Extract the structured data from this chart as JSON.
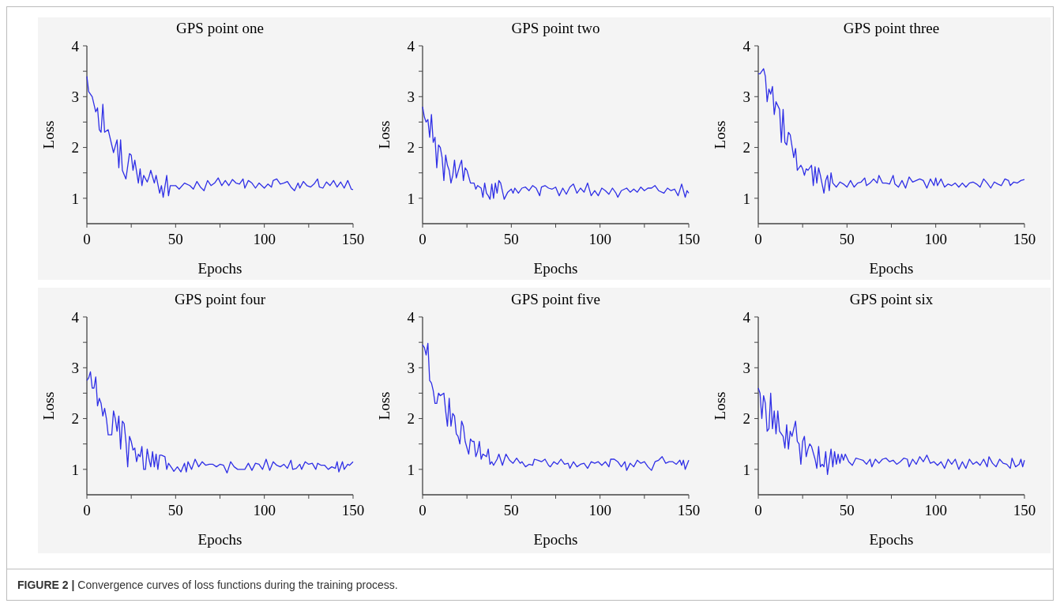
{
  "chart_data": [
    {
      "type": "line",
      "title": "GPS point one",
      "xlabel": "Epochs",
      "ylabel": "Loss",
      "color": "#2f2fe6",
      "xlim": [
        0,
        150
      ],
      "ylim": [
        0.5,
        4
      ],
      "xticks": [
        0,
        {
          "value": 25,
          "label": null
        },
        50,
        {
          "value": 75,
          "label": null
        },
        100,
        {
          "value": 125,
          "label": null
        },
        150
      ],
      "yticks": [
        1,
        {
          "value": 1.5,
          "label": null
        },
        2,
        {
          "value": 2.5,
          "label": null
        },
        3,
        {
          "value": 3.5,
          "label": null
        },
        4
      ],
      "annotations": [
        "FIGURE 2 | Convergence curves of loss functions during the training process."
      ],
      "x": [
        0,
        1,
        3,
        5,
        6,
        7,
        8,
        9,
        10,
        12,
        15,
        17,
        18,
        19,
        20,
        22,
        24,
        25,
        26,
        27,
        29,
        30,
        31,
        32,
        34,
        35,
        36,
        38,
        39,
        41,
        42,
        43,
        45,
        46,
        47,
        50,
        52,
        55,
        58,
        60,
        62,
        64,
        66,
        68,
        70,
        72,
        74,
        76,
        78,
        80,
        82,
        84,
        86,
        88,
        89,
        91,
        93,
        95,
        97,
        100,
        102,
        104,
        105,
        107,
        109,
        111,
        113,
        115,
        117,
        119,
        120,
        122,
        124,
        126,
        128,
        130,
        131,
        133,
        135,
        137,
        139,
        141,
        143,
        145,
        147,
        149,
        150
      ],
      "values": [
        3.4,
        3.1,
        3.0,
        2.7,
        2.78,
        2.35,
        2.3,
        2.85,
        2.3,
        2.35,
        1.9,
        2.15,
        1.6,
        2.15,
        1.55,
        1.38,
        1.88,
        1.85,
        1.55,
        1.75,
        1.3,
        1.58,
        1.25,
        1.45,
        1.32,
        1.42,
        1.55,
        1.3,
        1.45,
        1.1,
        1.25,
        1.02,
        1.45,
        1.05,
        1.25,
        1.25,
        1.18,
        1.3,
        1.25,
        1.18,
        1.33,
        1.22,
        1.15,
        1.35,
        1.25,
        1.3,
        1.4,
        1.25,
        1.35,
        1.25,
        1.37,
        1.3,
        1.28,
        1.38,
        1.2,
        1.35,
        1.3,
        1.2,
        1.3,
        1.2,
        1.28,
        1.22,
        1.35,
        1.38,
        1.28,
        1.3,
        1.33,
        1.22,
        1.15,
        1.3,
        1.2,
        1.33,
        1.25,
        1.22,
        1.28,
        1.38,
        1.22,
        1.2,
        1.32,
        1.25,
        1.35,
        1.22,
        1.32,
        1.2,
        1.35,
        1.18,
        1.17
      ]
    },
    {
      "type": "line",
      "title": "GPS point two",
      "xlabel": "Epochs",
      "ylabel": "Loss",
      "color": "#2f2fe6",
      "xlim": [
        0,
        150
      ],
      "ylim": [
        0.5,
        4
      ],
      "xticks": [
        0,
        {
          "value": 25,
          "label": null
        },
        50,
        {
          "value": 75,
          "label": null
        },
        100,
        {
          "value": 125,
          "label": null
        },
        150
      ],
      "yticks": [
        1,
        {
          "value": 1.5,
          "label": null
        },
        2,
        {
          "value": 2.5,
          "label": null
        },
        3,
        {
          "value": 3.5,
          "label": null
        },
        4
      ],
      "x": [
        0,
        1,
        2,
        3,
        4,
        5,
        6,
        7,
        8,
        9,
        10,
        11,
        12,
        13,
        14,
        15,
        16,
        17,
        18,
        19,
        21,
        22,
        23,
        24,
        25,
        27,
        29,
        30,
        31,
        33,
        34,
        35,
        36,
        37,
        38,
        39,
        40,
        41,
        42,
        43,
        44,
        46,
        48,
        50,
        51,
        52,
        54,
        56,
        58,
        60,
        62,
        64,
        66,
        67,
        69,
        71,
        73,
        75,
        77,
        79,
        81,
        83,
        85,
        87,
        89,
        91,
        93,
        95,
        97,
        99,
        101,
        103,
        105,
        107,
        109,
        110,
        112,
        115,
        117,
        119,
        121,
        123,
        125,
        127,
        129,
        131,
        133,
        136,
        138,
        140,
        142,
        144,
        146,
        148,
        149,
        150
      ],
      "values": [
        2.8,
        2.6,
        2.5,
        2.55,
        2.2,
        2.65,
        2.1,
        2.2,
        1.6,
        2.05,
        2.0,
        1.8,
        1.35,
        1.85,
        1.65,
        1.55,
        1.3,
        1.45,
        1.75,
        1.4,
        1.65,
        1.75,
        1.35,
        1.6,
        1.55,
        1.3,
        1.3,
        1.18,
        1.25,
        1.2,
        1.02,
        1.3,
        1.1,
        1.05,
        0.98,
        1.28,
        1.0,
        1.3,
        1.1,
        1.35,
        1.3,
        0.98,
        1.12,
        1.18,
        1.1,
        1.2,
        1.1,
        1.2,
        1.22,
        1.15,
        1.25,
        1.2,
        1.05,
        1.22,
        1.25,
        1.2,
        1.18,
        1.22,
        1.05,
        1.2,
        1.08,
        1.22,
        1.28,
        1.1,
        1.2,
        1.12,
        1.3,
        1.05,
        1.15,
        1.05,
        1.2,
        1.15,
        1.08,
        1.2,
        1.1,
        1.02,
        1.15,
        1.2,
        1.12,
        1.18,
        1.12,
        1.22,
        1.15,
        1.2,
        1.2,
        1.25,
        1.15,
        1.1,
        1.2,
        1.15,
        1.18,
        1.05,
        1.28,
        1.02,
        1.15,
        1.1
      ]
    },
    {
      "type": "line",
      "title": "GPS point three",
      "xlabel": "Epochs",
      "ylabel": "Loss",
      "color": "#2f2fe6",
      "xlim": [
        0,
        150
      ],
      "ylim": [
        0.5,
        4
      ],
      "xticks": [
        0,
        {
          "value": 25,
          "label": null
        },
        50,
        {
          "value": 75,
          "label": null
        },
        100,
        {
          "value": 125,
          "label": null
        },
        150
      ],
      "yticks": [
        1,
        {
          "value": 1.5,
          "label": null
        },
        2,
        {
          "value": 2.5,
          "label": null
        },
        3,
        {
          "value": 3.5,
          "label": null
        },
        4
      ],
      "x": [
        0,
        1,
        3,
        4,
        5,
        6,
        7,
        8,
        9,
        10,
        12,
        13,
        14,
        15,
        16,
        17,
        18,
        20,
        21,
        22,
        24,
        25,
        26,
        27,
        28,
        30,
        31,
        32,
        33,
        34,
        35,
        37,
        38,
        39,
        40,
        41,
        42,
        44,
        46,
        48,
        50,
        52,
        54,
        56,
        58,
        60,
        61,
        63,
        65,
        67,
        68,
        70,
        72,
        74,
        76,
        77,
        79,
        81,
        83,
        85,
        87,
        89,
        91,
        93,
        95,
        97,
        99,
        100,
        101,
        103,
        105,
        107,
        109,
        111,
        113,
        115,
        117,
        119,
        121,
        123,
        125,
        127,
        129,
        131,
        133,
        135,
        137,
        139,
        141,
        142,
        144,
        146,
        148,
        150
      ],
      "values": [
        3.45,
        3.45,
        3.55,
        3.4,
        2.9,
        3.15,
        3.05,
        3.2,
        2.65,
        2.9,
        2.75,
        2.1,
        2.75,
        2.1,
        2.05,
        2.3,
        2.25,
        1.8,
        1.98,
        1.55,
        1.65,
        1.58,
        1.45,
        1.58,
        1.55,
        1.65,
        1.25,
        1.62,
        1.3,
        1.6,
        1.45,
        1.1,
        1.35,
        1.45,
        1.15,
        1.5,
        1.3,
        1.22,
        1.32,
        1.28,
        1.22,
        1.35,
        1.22,
        1.3,
        1.32,
        1.4,
        1.25,
        1.3,
        1.38,
        1.3,
        1.45,
        1.3,
        1.3,
        1.28,
        1.45,
        1.28,
        1.22,
        1.35,
        1.2,
        1.42,
        1.32,
        1.35,
        1.38,
        1.35,
        1.2,
        1.38,
        1.25,
        1.4,
        1.25,
        1.38,
        1.22,
        1.28,
        1.25,
        1.3,
        1.22,
        1.3,
        1.22,
        1.3,
        1.32,
        1.28,
        1.22,
        1.38,
        1.3,
        1.2,
        1.32,
        1.28,
        1.25,
        1.38,
        1.35,
        1.25,
        1.32,
        1.3,
        1.35,
        1.37
      ]
    },
    {
      "type": "line",
      "title": "GPS point four",
      "xlabel": "Epochs",
      "ylabel": "Loss",
      "color": "#2f2fe6",
      "xlim": [
        0,
        150
      ],
      "ylim": [
        0.5,
        4
      ],
      "xticks": [
        0,
        {
          "value": 25,
          "label": null
        },
        50,
        {
          "value": 75,
          "label": null
        },
        100,
        {
          "value": 125,
          "label": null
        },
        150
      ],
      "yticks": [
        1,
        {
          "value": 1.5,
          "label": null
        },
        2,
        {
          "value": 2.5,
          "label": null
        },
        3,
        {
          "value": 3.5,
          "label": null
        },
        4
      ],
      "x": [
        0,
        1,
        2,
        3,
        4,
        5,
        6,
        7,
        8,
        9,
        10,
        11,
        12,
        14,
        15,
        16,
        17,
        18,
        19,
        20,
        21,
        22,
        23,
        24,
        25,
        26,
        27,
        28,
        29,
        30,
        31,
        32,
        33,
        34,
        35,
        36,
        37,
        38,
        39,
        40,
        41,
        42,
        44,
        45,
        46,
        48,
        49,
        51,
        53,
        55,
        56,
        57,
        59,
        61,
        63,
        65,
        67,
        69,
        71,
        73,
        75,
        77,
        79,
        81,
        83,
        85,
        87,
        89,
        91,
        93,
        95,
        97,
        99,
        101,
        103,
        105,
        107,
        109,
        111,
        113,
        115,
        116,
        118,
        120,
        121,
        123,
        125,
        127,
        129,
        130,
        132,
        134,
        136,
        138,
        140,
        141,
        142,
        144,
        145,
        147,
        148,
        150
      ],
      "values": [
        2.75,
        2.8,
        2.92,
        2.6,
        2.6,
        2.82,
        2.25,
        2.4,
        2.3,
        2.05,
        2.2,
        2.0,
        1.68,
        1.68,
        2.15,
        2.0,
        1.75,
        2.05,
        1.4,
        1.95,
        1.9,
        1.55,
        1.05,
        1.65,
        1.55,
        1.38,
        1.42,
        1.15,
        1.3,
        1.25,
        1.45,
        1.0,
        1.0,
        1.4,
        1.2,
        1.05,
        1.35,
        1.05,
        1.3,
        1.0,
        1.28,
        1.28,
        1.25,
        1.0,
        1.12,
        1.02,
        0.96,
        1.05,
        0.95,
        1.12,
        0.95,
        1.15,
        1.0,
        1.2,
        1.05,
        1.15,
        1.08,
        1.1,
        1.1,
        1.05,
        1.1,
        1.08,
        0.93,
        1.15,
        1.05,
        1.0,
        1.0,
        1.0,
        1.12,
        0.98,
        1.12,
        1.1,
        1.0,
        1.2,
        0.98,
        1.15,
        1.08,
        1.05,
        1.1,
        1.02,
        1.18,
        1.0,
        1.02,
        1.1,
        1.0,
        1.15,
        1.1,
        1.12,
        1.0,
        1.12,
        1.08,
        1.08,
        1.0,
        1.05,
        1.02,
        1.15,
        0.95,
        1.15,
        1.0,
        1.1,
        1.08,
        1.15
      ]
    },
    {
      "type": "line",
      "title": "GPS point five",
      "xlabel": "Epochs",
      "ylabel": "Loss",
      "color": "#2f2fe6",
      "xlim": [
        0,
        150
      ],
      "ylim": [
        0.5,
        4
      ],
      "xticks": [
        0,
        {
          "value": 25,
          "label": null
        },
        50,
        {
          "value": 75,
          "label": null
        },
        100,
        {
          "value": 125,
          "label": null
        },
        150
      ],
      "yticks": [
        1,
        {
          "value": 1.5,
          "label": null
        },
        2,
        {
          "value": 2.5,
          "label": null
        },
        3,
        {
          "value": 3.5,
          "label": null
        },
        4
      ],
      "x": [
        0,
        1,
        2,
        3,
        4,
        5,
        6,
        7,
        8,
        9,
        10,
        12,
        13,
        14,
        15,
        16,
        17,
        18,
        19,
        20,
        21,
        22,
        23,
        24,
        26,
        27,
        28,
        29,
        30,
        31,
        32,
        33,
        34,
        36,
        37,
        38,
        39,
        40,
        42,
        43,
        45,
        47,
        49,
        51,
        53,
        55,
        56,
        58,
        60,
        62,
        63,
        65,
        67,
        69,
        71,
        72,
        74,
        76,
        78,
        80,
        82,
        83,
        85,
        87,
        89,
        91,
        93,
        95,
        97,
        99,
        101,
        103,
        105,
        106,
        108,
        110,
        112,
        114,
        115,
        117,
        119,
        121,
        123,
        125,
        127,
        129,
        131,
        133,
        135,
        137,
        139,
        141,
        143,
        145,
        146,
        147,
        148,
        150
      ],
      "values": [
        3.45,
        3.4,
        3.25,
        3.48,
        2.75,
        2.7,
        2.55,
        2.3,
        2.3,
        2.5,
        2.45,
        2.5,
        2.15,
        1.85,
        2.4,
        1.85,
        2.1,
        2.05,
        1.7,
        1.65,
        1.5,
        1.95,
        1.85,
        1.55,
        1.3,
        1.6,
        1.55,
        1.55,
        1.25,
        1.35,
        1.55,
        1.2,
        1.3,
        1.25,
        1.4,
        1.1,
        1.15,
        1.08,
        1.2,
        1.3,
        1.08,
        1.3,
        1.18,
        1.12,
        1.22,
        1.12,
        1.15,
        1.05,
        1.1,
        1.08,
        1.2,
        1.18,
        1.15,
        1.2,
        1.08,
        1.05,
        1.15,
        1.1,
        1.2,
        1.1,
        1.12,
        1.02,
        1.15,
        1.05,
        1.1,
        1.12,
        1.02,
        1.15,
        1.12,
        1.15,
        1.08,
        1.15,
        1.05,
        1.2,
        1.2,
        1.15,
        1.05,
        1.15,
        0.98,
        1.12,
        1.05,
        1.18,
        1.12,
        1.15,
        1.05,
        0.98,
        1.15,
        1.18,
        1.25,
        1.12,
        1.15,
        1.15,
        1.1,
        1.18,
        1.08,
        1.18,
        1.0,
        1.18
      ]
    },
    {
      "type": "line",
      "title": "GPS point six",
      "xlabel": "Epochs",
      "ylabel": "Loss",
      "color": "#2f2fe6",
      "xlim": [
        0,
        150
      ],
      "ylim": [
        0.5,
        4
      ],
      "xticks": [
        0,
        {
          "value": 25,
          "label": null
        },
        50,
        {
          "value": 75,
          "label": null
        },
        100,
        {
          "value": 125,
          "label": null
        },
        150
      ],
      "yticks": [
        1,
        {
          "value": 1.5,
          "label": null
        },
        2,
        {
          "value": 2.5,
          "label": null
        },
        3,
        {
          "value": 3.5,
          "label": null
        },
        4
      ],
      "x": [
        0,
        1,
        2,
        3,
        4,
        5,
        6,
        7,
        8,
        9,
        10,
        11,
        12,
        14,
        15,
        16,
        17,
        18,
        19,
        21,
        22,
        23,
        24,
        25,
        26,
        27,
        28,
        29,
        30,
        32,
        33,
        34,
        35,
        36,
        37,
        38,
        39,
        40,
        41,
        42,
        43,
        44,
        45,
        46,
        47,
        48,
        49,
        51,
        53,
        55,
        57,
        59,
        61,
        63,
        64,
        66,
        68,
        70,
        72,
        74,
        76,
        78,
        80,
        82,
        84,
        85,
        87,
        89,
        91,
        93,
        95,
        97,
        99,
        101,
        103,
        105,
        107,
        109,
        111,
        113,
        115,
        117,
        119,
        121,
        123,
        125,
        127,
        129,
        130,
        132,
        134,
        136,
        138,
        140,
        142,
        143,
        145,
        147,
        148,
        149,
        150
      ],
      "values": [
        2.6,
        2.5,
        2.0,
        2.45,
        2.3,
        1.75,
        1.8,
        2.5,
        1.8,
        2.15,
        1.7,
        2.15,
        1.75,
        1.65,
        1.42,
        1.88,
        1.4,
        1.75,
        1.65,
        1.95,
        1.55,
        1.5,
        1.1,
        1.55,
        1.65,
        1.25,
        1.4,
        1.5,
        1.45,
        1.2,
        1.02,
        1.45,
        1.05,
        1.1,
        1.05,
        1.35,
        0.9,
        1.15,
        1.4,
        1.05,
        1.35,
        1.1,
        1.3,
        1.12,
        1.3,
        1.18,
        1.3,
        1.15,
        1.08,
        1.22,
        1.2,
        1.18,
        1.1,
        1.2,
        1.05,
        1.2,
        1.12,
        1.2,
        1.22,
        1.15,
        1.18,
        1.1,
        1.15,
        1.22,
        1.2,
        1.05,
        1.2,
        1.1,
        1.25,
        1.15,
        1.28,
        1.12,
        1.15,
        1.08,
        1.15,
        1.02,
        1.2,
        1.1,
        1.2,
        1.0,
        1.15,
        1.02,
        1.2,
        1.1,
        1.15,
        1.08,
        1.2,
        1.05,
        1.25,
        1.12,
        1.05,
        1.2,
        1.12,
        1.1,
        1.02,
        1.22,
        1.05,
        1.1,
        1.2,
        1.05,
        1.18
      ]
    }
  ]
}
